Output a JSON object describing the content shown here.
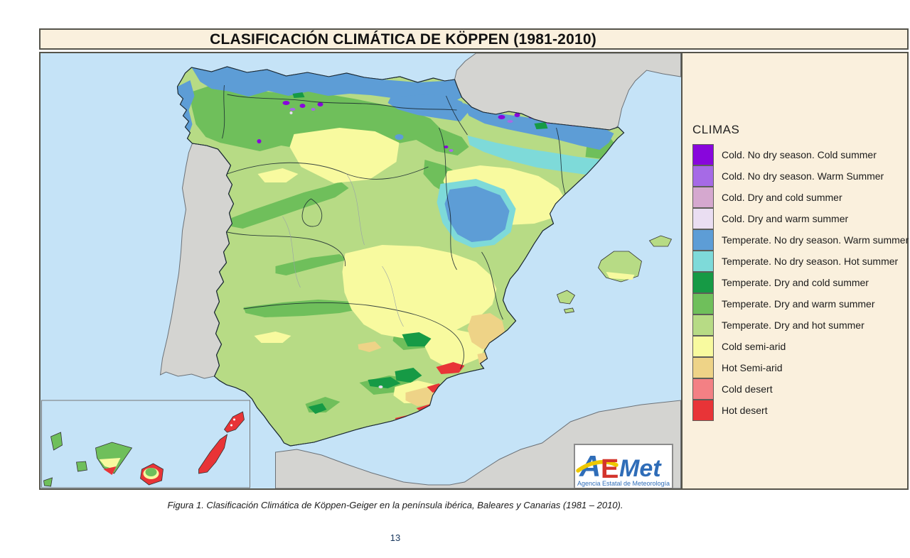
{
  "page": {
    "caption": "Figura 1. Clasificación Climática de Köppen-Geiger en la península ibérica, Baleares y Canarias (1981 – 2010).",
    "number": "13"
  },
  "map": {
    "title": "CLASIFICACIÓN CLIMÁTICA DE KÖPPEN (1981-2010)",
    "legend": {
      "title": "CLIMAS",
      "items": [
        {
          "label": "Cold. No dry season. Cold summer",
          "color": "#8806dc"
        },
        {
          "label": "Cold. No dry season. Warm Summer",
          "color": "#a66ae6"
        },
        {
          "label": "Cold. Dry and cold summer",
          "color": "#d5a8cf"
        },
        {
          "label": "Cold. Dry and warm summer",
          "color": "#eadef2"
        },
        {
          "label": "Temperate. No dry season. Warm summer",
          "color": "#5d9dd6"
        },
        {
          "label": "Temperate. No dry season. Hot summer",
          "color": "#7edad9"
        },
        {
          "label": "Temperate. Dry and cold summer",
          "color": "#169a45"
        },
        {
          "label": "Temperate. Dry and warm summer",
          "color": "#6fbf5b"
        },
        {
          "label": "Temperate. Dry and hot summer",
          "color": "#b7db85"
        },
        {
          "label": "Cold semi-arid",
          "color": "#f8fa9f"
        },
        {
          "label": "Hot Semi-arid",
          "color": "#eed387"
        },
        {
          "label": "Cold desert",
          "color": "#f38084"
        },
        {
          "label": "Hot desert",
          "color": "#e83437"
        }
      ]
    },
    "logo": {
      "brand_a": "A",
      "brand_e": "E",
      "brand_met": "Met",
      "subtitle": "Agencia Estatal de Meteorología",
      "colors": {
        "blue": "#2f6db8",
        "red": "#d3342c",
        "yellow": "#eec800"
      }
    },
    "colors": {
      "sea": "#c5e3f7",
      "foreign_land": "#d4d4d1",
      "panel_bg": "#faf0dd"
    }
  }
}
